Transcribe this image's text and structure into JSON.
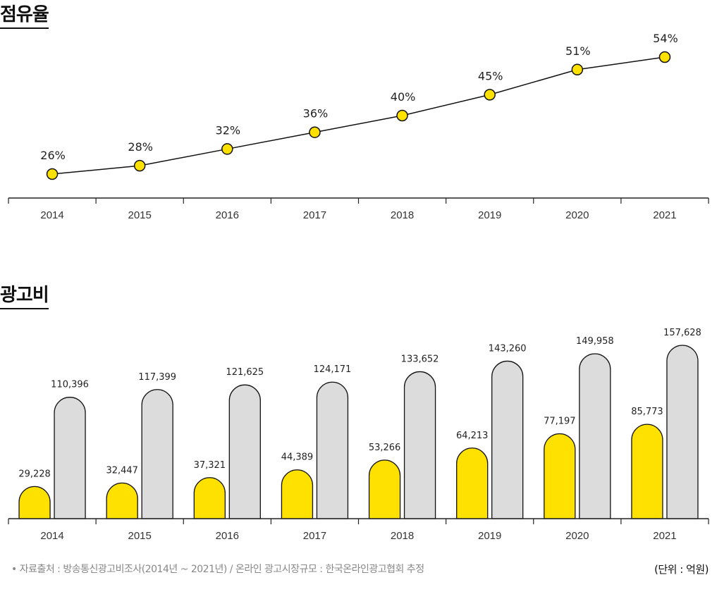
{
  "share_section": {
    "title": "점유율"
  },
  "ad_section": {
    "title": "광고비"
  },
  "footer": {
    "source": "• 자료출처 : 방송통신광고비조사(2014년 ~ 2021년) / 온라인 광고시장규모 : 한국온라인광고협회 추정",
    "unit": "(단위 : 억원)"
  },
  "colors": {
    "accent": "#FFE100",
    "gray_bar": "#DCDCDC",
    "line": "#111111",
    "axis": "#222222"
  },
  "chart_data": [
    {
      "type": "line",
      "title": "점유율",
      "categories": [
        "2014",
        "2015",
        "2016",
        "2017",
        "2018",
        "2019",
        "2020",
        "2021"
      ],
      "values": [
        26,
        28,
        32,
        36,
        40,
        45,
        51,
        54
      ],
      "value_labels": [
        "26%",
        "28%",
        "32%",
        "36%",
        "40%",
        "45%",
        "51%",
        "54%"
      ],
      "ylim": [
        20,
        56
      ],
      "grid": false,
      "xlabel": "",
      "ylabel": ""
    },
    {
      "type": "bar",
      "title": "광고비",
      "categories": [
        "2014",
        "2015",
        "2016",
        "2017",
        "2018",
        "2019",
        "2020",
        "2021"
      ],
      "series": [
        {
          "values": [
            29228,
            32447,
            37321,
            44389,
            53266,
            64213,
            77197,
            85773
          ],
          "labels": [
            "29,228",
            "32,447",
            "37,321",
            "44,389",
            "53,266",
            "64,213",
            "77,197",
            "85,773"
          ]
        },
        {
          "values": [
            110396,
            117399,
            121625,
            124171,
            133652,
            143260,
            149958,
            157628
          ],
          "labels": [
            "110,396",
            "117,399",
            "121,625",
            "124,171",
            "133,652",
            "143,260",
            "149,958",
            "157,628"
          ]
        }
      ],
      "ylim": [
        0,
        160000
      ],
      "grid": false,
      "xlabel": "",
      "ylabel": ""
    }
  ]
}
